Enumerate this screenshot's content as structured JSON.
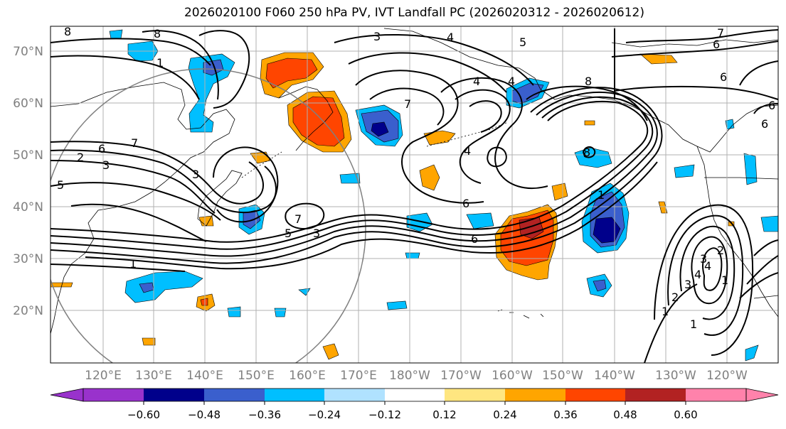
{
  "title": "2026020100 F060 250 hPa PV, IVT Landfall PC (2026020312 - 2026020612)",
  "axes": {
    "lat_labels": [
      "70°N",
      "60°N",
      "50°N",
      "40°N",
      "30°N",
      "20°N"
    ],
    "lon_labels": [
      "120°E",
      "130°E",
      "140°E",
      "150°E",
      "160°E",
      "170°E",
      "180°W",
      "170°W",
      "160°W",
      "150°W",
      "140°W",
      "130°W",
      "120°W"
    ]
  },
  "colorbar": {
    "ticks": [
      "−0.60",
      "−0.48",
      "−0.36",
      "−0.24",
      "−0.12",
      "0.12",
      "0.24",
      "0.36",
      "0.48",
      "0.60"
    ],
    "colors": [
      "#9932cc",
      "#00008b",
      "#3a5fcd",
      "#00bfff",
      "#b0e2ff",
      "#ffffff",
      "#ffe680",
      "#ffa500",
      "#ff4500",
      "#b22222",
      "#ff82ab"
    ]
  },
  "contour_labels": [
    "8",
    "3",
    "4",
    "5",
    "6",
    "7",
    "8",
    "4",
    "6",
    "7",
    "3",
    "6",
    "5",
    "2",
    "3",
    "7",
    "1",
    "6",
    "4",
    "8",
    "4",
    "3",
    "1",
    "1",
    "2",
    "3",
    "4",
    "7",
    "6",
    "5",
    "4",
    "3",
    "2",
    "1",
    "6",
    "8",
    "6",
    "1",
    "1"
  ],
  "colors": {
    "blue_light": "#00bfff",
    "blue_mid": "#3a5fcd",
    "blue_dark": "#00008b",
    "orange": "#ffa500",
    "red_orange": "#ff4500",
    "dark_red": "#b22222"
  }
}
